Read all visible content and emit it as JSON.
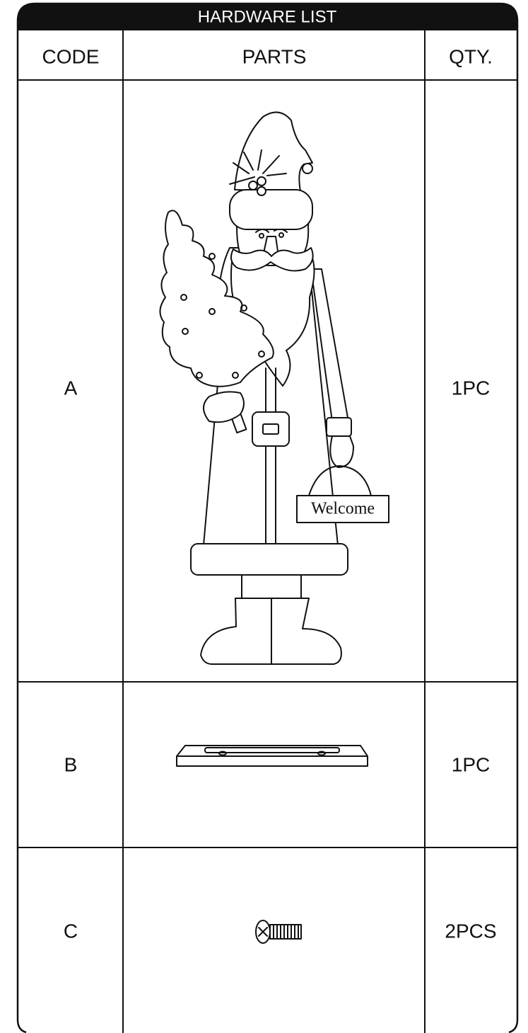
{
  "header": {
    "title": "HARDWARE LIST"
  },
  "table": {
    "columns": [
      "CODE",
      "PARTS",
      "QTY."
    ],
    "rows": [
      {
        "code": "A",
        "qty": "1PC",
        "sign": "Welcome"
      },
      {
        "code": "B",
        "qty": "1PC"
      },
      {
        "code": "C",
        "qty": "2PCS"
      }
    ]
  }
}
